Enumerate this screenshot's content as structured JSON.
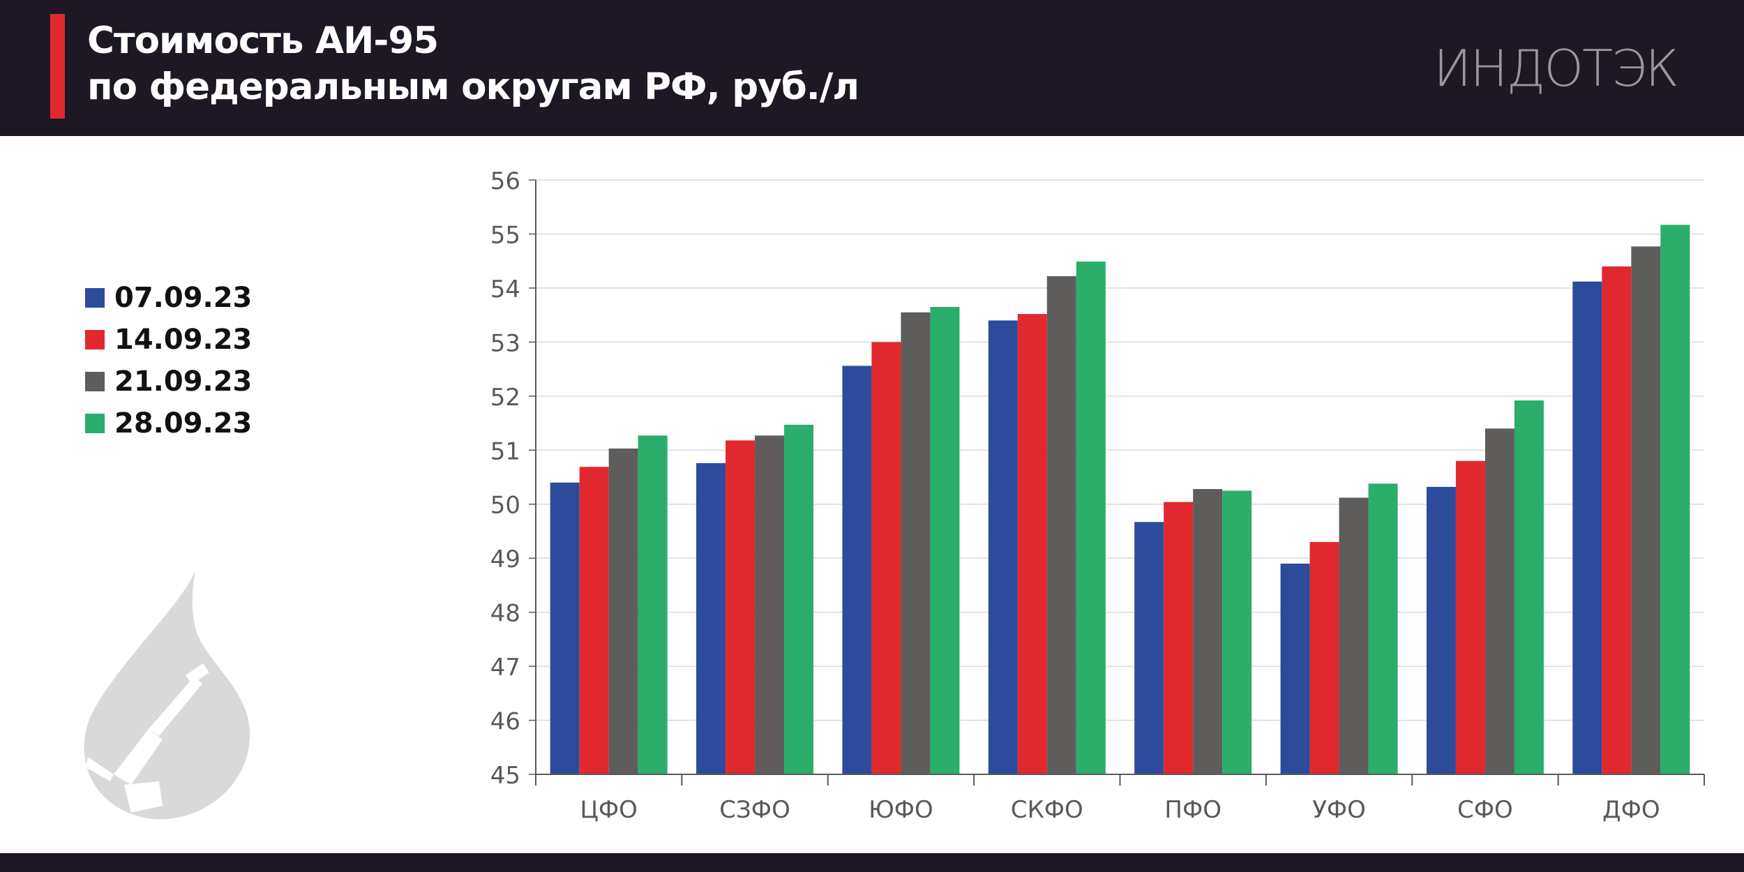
{
  "header": {
    "title_line1": "Стоимость АИ-95",
    "title_line2": "по федеральным округам РФ, руб./л",
    "logo_text": "ИНДОТЭК"
  },
  "colors": {
    "header_bg": "#1d1824",
    "accent": "#e1282f"
  },
  "icons": [
    "fuel-drop-icon"
  ],
  "chart_data": {
    "type": "bar",
    "title": "Стоимость АИ-95 по федеральным округам РФ, руб./л",
    "categories": [
      "ЦФО",
      "СЗФО",
      "ЮФО",
      "СКФО",
      "ПФО",
      "УФО",
      "СФО",
      "ДФО"
    ],
    "series": [
      {
        "name": "07.09.23",
        "color": "#2d4b9b",
        "values": [
          50.4,
          50.76,
          52.56,
          53.4,
          49.67,
          48.9,
          50.32,
          54.12
        ]
      },
      {
        "name": "14.09.23",
        "color": "#e1282f",
        "values": [
          50.69,
          51.18,
          53.0,
          53.52,
          50.04,
          49.3,
          50.8,
          54.4
        ]
      },
      {
        "name": "21.09.23",
        "color": "#5f5c5c",
        "values": [
          51.03,
          51.27,
          53.55,
          54.22,
          50.28,
          50.12,
          51.4,
          54.77
        ]
      },
      {
        "name": "28.09.23",
        "color": "#2bad6b",
        "values": [
          51.27,
          51.47,
          53.65,
          54.49,
          50.25,
          50.38,
          51.92,
          55.17
        ]
      }
    ],
    "ylim": [
      45,
      56
    ],
    "yticks": [
      45,
      46,
      47,
      48,
      49,
      50,
      51,
      52,
      53,
      54,
      55,
      56
    ],
    "grid": true,
    "legend": "left"
  }
}
